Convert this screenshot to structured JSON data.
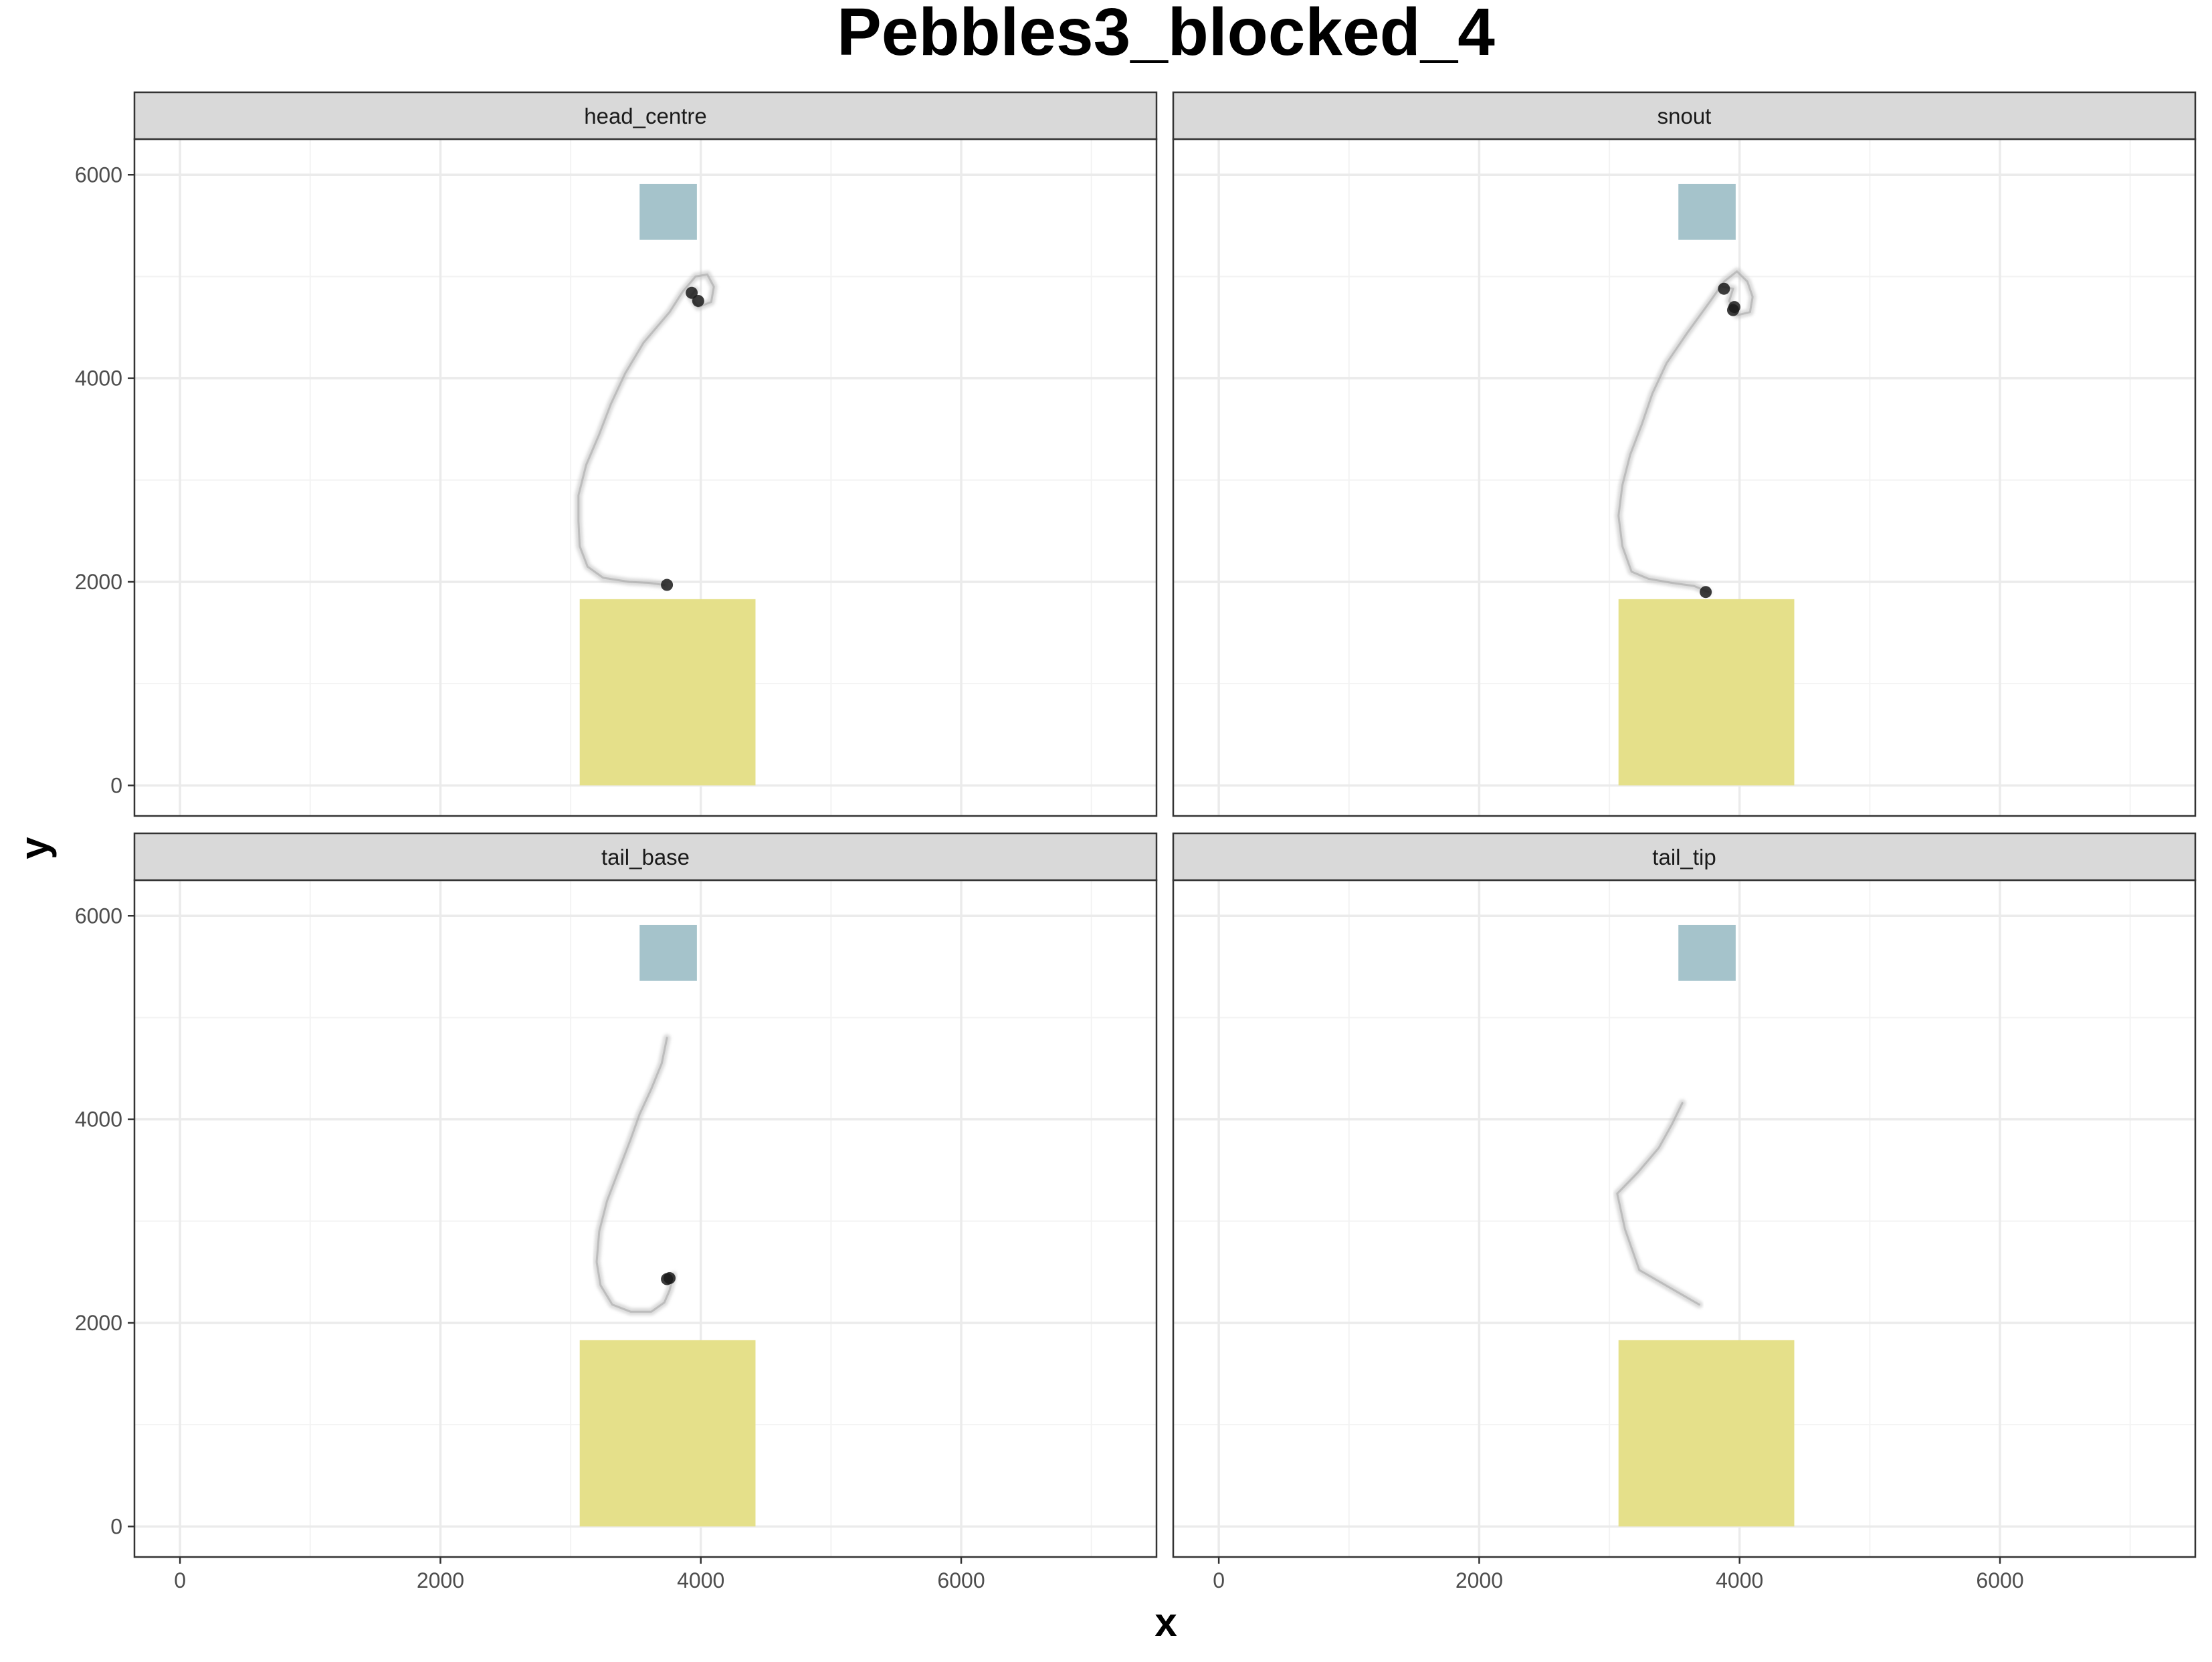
{
  "chart_data": {
    "type": "scatter",
    "title": "Pebbles3_blocked_4",
    "xlabel": "x",
    "ylabel": "y",
    "xlim": [
      -350,
      7500
    ],
    "ylim": [
      -300,
      6350
    ],
    "x_ticks": [
      0,
      2000,
      4000,
      6000
    ],
    "y_ticks": [
      0,
      2000,
      4000,
      6000
    ],
    "grid": true,
    "colors": {
      "path": "#bdbdbd",
      "point": "#1a1a1a",
      "start_zone": "#e5e08a",
      "goal_zone": "#a5c3cb",
      "strip": "#d9d9d9",
      "grid": "#ebebeb"
    },
    "regions": [
      {
        "shape": "rect",
        "x": [
          3070,
          4420
        ],
        "y": [
          0,
          1830
        ],
        "color": "#e5e08a"
      },
      {
        "shape": "rect",
        "x": [
          3530,
          3970
        ],
        "y": [
          5360,
          5910
        ],
        "color": "#a5c3cb"
      }
    ],
    "panels": [
      {
        "label": "head_centre",
        "path": [
          [
            3720,
            1970
          ],
          [
            3600,
            1990
          ],
          [
            3450,
            2000
          ],
          [
            3250,
            2040
          ],
          [
            3130,
            2150
          ],
          [
            3070,
            2350
          ],
          [
            3060,
            2600
          ],
          [
            3060,
            2850
          ],
          [
            3120,
            3150
          ],
          [
            3220,
            3450
          ],
          [
            3310,
            3750
          ],
          [
            3420,
            4050
          ],
          [
            3560,
            4350
          ],
          [
            3760,
            4650
          ],
          [
            3860,
            4850
          ],
          [
            3960,
            5000
          ],
          [
            4050,
            5020
          ],
          [
            4100,
            4900
          ],
          [
            4080,
            4750
          ],
          [
            3980,
            4700
          ],
          [
            3920,
            4800
          ],
          [
            3960,
            4870
          ]
        ],
        "points": [
          [
            3740,
            1970
          ],
          [
            3930,
            4840
          ],
          [
            3980,
            4760
          ]
        ]
      },
      {
        "label": "snout",
        "path": [
          [
            3760,
            1900
          ],
          [
            3650,
            1960
          ],
          [
            3480,
            1990
          ],
          [
            3300,
            2030
          ],
          [
            3170,
            2100
          ],
          [
            3100,
            2350
          ],
          [
            3070,
            2650
          ],
          [
            3100,
            2950
          ],
          [
            3160,
            3250
          ],
          [
            3250,
            3550
          ],
          [
            3330,
            3850
          ],
          [
            3440,
            4150
          ],
          [
            3600,
            4450
          ],
          [
            3770,
            4750
          ],
          [
            3880,
            4950
          ],
          [
            3980,
            5050
          ],
          [
            4060,
            4950
          ],
          [
            4100,
            4800
          ],
          [
            4080,
            4650
          ],
          [
            3980,
            4620
          ],
          [
            3920,
            4760
          ],
          [
            3950,
            4880
          ],
          [
            3870,
            4900
          ]
        ],
        "points": [
          [
            3740,
            1900
          ],
          [
            3880,
            4880
          ],
          [
            3960,
            4700
          ],
          [
            3950,
            4670
          ]
        ]
      },
      {
        "label": "tail_base",
        "path": [
          [
            3790,
            2470
          ],
          [
            3760,
            2320
          ],
          [
            3720,
            2200
          ],
          [
            3620,
            2110
          ],
          [
            3460,
            2110
          ],
          [
            3320,
            2180
          ],
          [
            3230,
            2370
          ],
          [
            3200,
            2600
          ],
          [
            3220,
            2900
          ],
          [
            3280,
            3200
          ],
          [
            3370,
            3500
          ],
          [
            3460,
            3800
          ],
          [
            3530,
            4050
          ],
          [
            3620,
            4300
          ],
          [
            3700,
            4550
          ],
          [
            3740,
            4800
          ]
        ],
        "points": [
          [
            3760,
            2440
          ],
          [
            3740,
            2430
          ]
        ]
      },
      {
        "label": "tail_tip",
        "path": [
          [
            3690,
            2180
          ],
          [
            3500,
            2320
          ],
          [
            3230,
            2520
          ],
          [
            3120,
            2920
          ],
          [
            3060,
            3270
          ],
          [
            3220,
            3480
          ],
          [
            3380,
            3720
          ],
          [
            3480,
            3950
          ],
          [
            3560,
            4160
          ]
        ],
        "points": []
      }
    ]
  }
}
